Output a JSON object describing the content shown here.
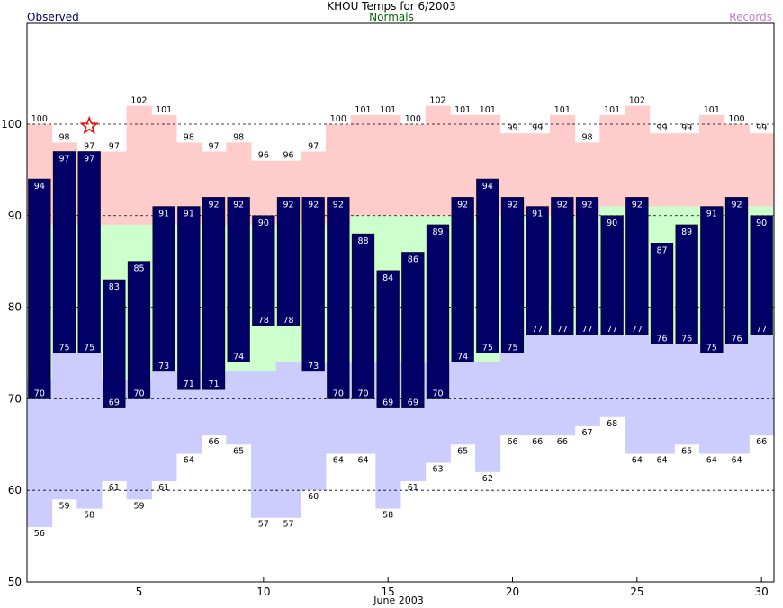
{
  "chart_data": {
    "type": "bar",
    "title": "KHOU Temps for 6/2003",
    "legend": {
      "observed": {
        "label": "Observed",
        "color": "#000066"
      },
      "normals": {
        "label": "Normals",
        "color": "#006600"
      },
      "records": {
        "label": "Records",
        "color": "#c080c0"
      }
    },
    "xlabel": "June 2003",
    "xticks": [
      5,
      10,
      15,
      20,
      25,
      30
    ],
    "yticks": [
      50,
      60,
      70,
      80,
      90,
      100
    ],
    "ylim": [
      50,
      111
    ],
    "xlim": [
      0.5,
      30.5
    ],
    "days": [
      1,
      2,
      3,
      4,
      5,
      6,
      7,
      8,
      9,
      10,
      11,
      12,
      13,
      14,
      15,
      16,
      17,
      18,
      19,
      20,
      21,
      22,
      23,
      24,
      25,
      26,
      27,
      28,
      29,
      30
    ],
    "record_high": [
      100,
      98,
      97,
      97,
      102,
      101,
      98,
      97,
      98,
      96,
      96,
      97,
      100,
      101,
      101,
      100,
      102,
      101,
      101,
      99,
      99,
      101,
      98,
      101,
      102,
      99,
      99,
      101,
      100,
      99
    ],
    "normal_high": [
      89,
      89,
      89,
      89,
      89,
      89,
      89,
      89,
      89,
      89,
      89,
      89,
      89,
      90,
      90,
      90,
      90,
      90,
      90,
      90,
      90,
      90,
      90,
      91,
      91,
      91,
      91,
      91,
      91,
      91
    ],
    "normal_low": [
      72,
      75,
      75,
      72,
      72,
      73,
      73,
      73,
      73,
      73,
      74,
      74,
      74,
      74,
      74,
      74,
      74,
      74,
      74,
      75,
      77,
      77,
      77,
      77,
      77,
      76,
      76,
      76,
      76,
      77
    ],
    "record_low": [
      56,
      59,
      58,
      61,
      59,
      61,
      64,
      66,
      65,
      57,
      57,
      60,
      64,
      64,
      58,
      61,
      63,
      65,
      62,
      66,
      66,
      66,
      67,
      68,
      64,
      64,
      65,
      64,
      64,
      66
    ],
    "observed_high": [
      94,
      97,
      97,
      83,
      85,
      91,
      91,
      92,
      92,
      90,
      92,
      92,
      92,
      88,
      84,
      86,
      89,
      92,
      94,
      92,
      91,
      92,
      92,
      90,
      92,
      87,
      89,
      91,
      92,
      90
    ],
    "observed_low": [
      70,
      75,
      75,
      69,
      70,
      73,
      71,
      71,
      74,
      78,
      78,
      73,
      70,
      70,
      69,
      69,
      70,
      74,
      75,
      75,
      77,
      77,
      77,
      77,
      77,
      76,
      76,
      75,
      76,
      77
    ],
    "record_high_labels": [
      "100",
      "98",
      "97",
      "97",
      "102",
      "101",
      "98",
      "97",
      "98",
      "96",
      "96",
      "97",
      "100",
      "101",
      "101",
      "100",
      "102",
      "101",
      "101",
      "99",
      "99",
      "101",
      "98",
      "101",
      "102",
      "99",
      "99",
      "101",
      "100",
      "99"
    ],
    "record_low_labels": [
      "56",
      "59",
      "58",
      "61",
      "59",
      "61",
      "64",
      "66",
      "65",
      "57",
      "57",
      "60",
      "64",
      "64",
      "58",
      "61",
      "63",
      "65",
      "62",
      "66",
      "66",
      "66",
      "67",
      "68",
      "64",
      "64",
      "65",
      "64",
      "64",
      "66"
    ],
    "observed_high_labels": [
      "94",
      "97",
      "97",
      "83",
      "85",
      "91",
      "91",
      "92",
      "92",
      "90",
      "92",
      "92",
      "92",
      "88",
      "84",
      "86",
      "89",
      "92",
      "94",
      "92",
      "91",
      "92",
      "92",
      "90",
      "92",
      "87",
      "89",
      "91",
      "92",
      "90"
    ],
    "observed_low_labels": [
      "70",
      "75",
      "75",
      "69",
      "70",
      "73",
      "71",
      "71",
      "74",
      "78",
      "78",
      "73",
      "70",
      "70",
      "69",
      "69",
      "70",
      "74",
      "75",
      "75",
      "77",
      "77",
      "77",
      "77",
      "77",
      "76",
      "76",
      "75",
      "76",
      "77"
    ],
    "star_marker": {
      "day": 3,
      "value": 99.8,
      "color": "#ff0000"
    },
    "colors": {
      "record_high_band": "#ffcccc",
      "normal_band": "#ccffcc",
      "record_low_band": "#ccccff",
      "observed_bar": "#000066",
      "observed_text": "#ffffff",
      "grid": "#000000"
    },
    "grid": "dashed at y ticks"
  }
}
